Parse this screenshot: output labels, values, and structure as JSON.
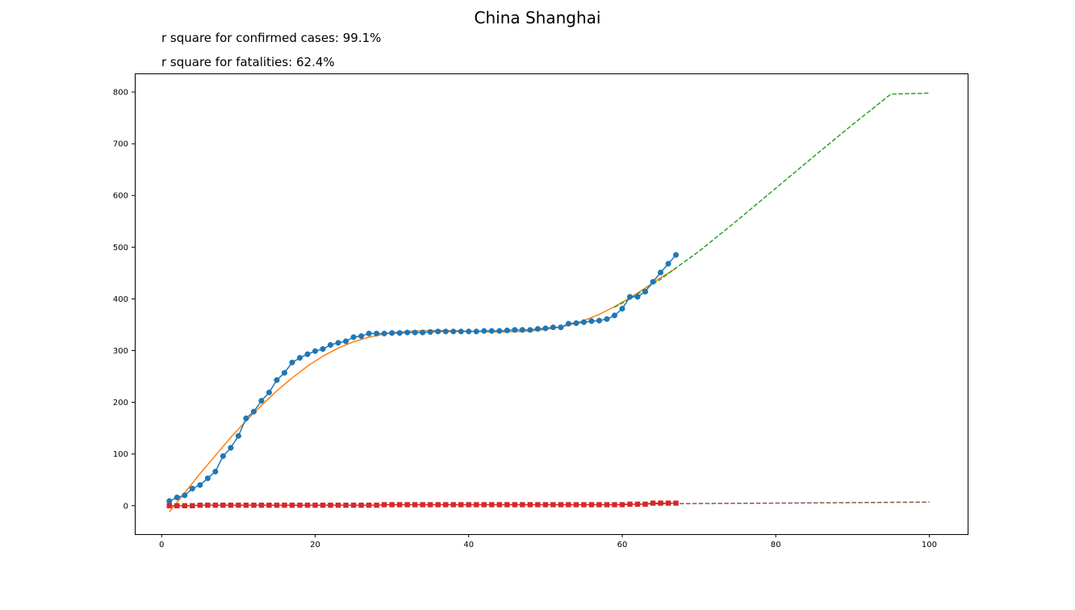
{
  "chart_data": {
    "type": "line",
    "title": "China Shanghai",
    "annotations": [
      "r square for confirmed cases: 99.1%",
      "r square for fatalities: 62.4%"
    ],
    "xlim": [
      -3.5,
      105
    ],
    "ylim": [
      -55,
      836
    ],
    "xticks": [
      0,
      20,
      40,
      60,
      80,
      100
    ],
    "yticks": [
      0,
      100,
      200,
      300,
      400,
      500,
      600,
      700,
      800
    ],
    "grid": false,
    "colors": {
      "confirmed": "#1f77b4",
      "confirmed_fit": "#ff7f0e",
      "confirmed_projection": "#2ca02c",
      "fatalities": "#d62728",
      "fatalities_projection": "#8c564b"
    },
    "series": [
      {
        "role": "confirmed",
        "style": "line-markers-circle",
        "x": [
          1,
          2,
          3,
          4,
          5,
          6,
          7,
          8,
          9,
          10,
          11,
          12,
          13,
          14,
          15,
          16,
          17,
          18,
          19,
          20,
          21,
          22,
          23,
          24,
          25,
          26,
          27,
          28,
          29,
          30,
          31,
          32,
          33,
          34,
          35,
          36,
          37,
          38,
          39,
          40,
          41,
          42,
          43,
          44,
          45,
          46,
          47,
          48,
          49,
          50,
          51,
          52,
          53,
          54,
          55,
          56,
          57,
          58,
          59,
          60,
          61,
          62,
          63,
          64,
          65,
          66,
          67
        ],
        "y": [
          9,
          16,
          20,
          33,
          40,
          53,
          66,
          96,
          112,
          135,
          169,
          182,
          203,
          219,
          243,
          257,
          277,
          286,
          293,
          299,
          303,
          311,
          315,
          318,
          326,
          328,
          333,
          333,
          333,
          334,
          334,
          335,
          335,
          335,
          336,
          337,
          337,
          337,
          337,
          337,
          337,
          338,
          338,
          338,
          339,
          340,
          340,
          340,
          342,
          343,
          345,
          345,
          352,
          353,
          355,
          357,
          358,
          361,
          368,
          381,
          404,
          404,
          414,
          433,
          451,
          468,
          485
        ]
      },
      {
        "role": "confirmed_fit",
        "style": "solid",
        "x": [
          1,
          3,
          5,
          7,
          9,
          11,
          13,
          15,
          17,
          19,
          21,
          23,
          25,
          27,
          29,
          31,
          33,
          35,
          37,
          39,
          41,
          43,
          45,
          47,
          49,
          51,
          53,
          55,
          57,
          59,
          61,
          63,
          65,
          67
        ],
        "y": [
          -12,
          25,
          62,
          97,
          132,
          164,
          194,
          222,
          247,
          270,
          289,
          305,
          317,
          326,
          332,
          336,
          338,
          339,
          339,
          338,
          337,
          336,
          336,
          337,
          339,
          343,
          349,
          358,
          370,
          385,
          402,
          421,
          441,
          459
        ]
      },
      {
        "role": "confirmed_projection",
        "style": "dashed",
        "x": [
          59,
          61,
          63,
          65,
          67,
          70,
          75,
          80,
          85,
          90,
          95,
          100
        ],
        "y": [
          384,
          400,
          419,
          438,
          460,
          492,
          552,
          614,
          676,
          737,
          796,
          798
        ]
      },
      {
        "role": "fatalities",
        "style": "line-markers-square",
        "x": [
          1,
          2,
          3,
          4,
          5,
          6,
          7,
          8,
          9,
          10,
          11,
          12,
          13,
          14,
          15,
          16,
          17,
          18,
          19,
          20,
          21,
          22,
          23,
          24,
          25,
          26,
          27,
          28,
          29,
          30,
          31,
          32,
          33,
          34,
          35,
          36,
          37,
          38,
          39,
          40,
          41,
          42,
          43,
          44,
          45,
          46,
          47,
          48,
          49,
          50,
          51,
          52,
          53,
          54,
          55,
          56,
          57,
          58,
          59,
          60,
          61,
          62,
          63,
          64,
          65,
          66,
          67
        ],
        "y": [
          0,
          0,
          0,
          0,
          1,
          1,
          1,
          1,
          1,
          1,
          1,
          1,
          1,
          1,
          1,
          1,
          1,
          1,
          1,
          1,
          1,
          1,
          1,
          1,
          1,
          1,
          1,
          1,
          2,
          2,
          2,
          2,
          2,
          2,
          2,
          2,
          2,
          2,
          2,
          2,
          2,
          2,
          2,
          2,
          2,
          2,
          2,
          2,
          2,
          2,
          2,
          2,
          2,
          2,
          2,
          2,
          2,
          2,
          2,
          2,
          3,
          3,
          3,
          5,
          5,
          5,
          5
        ]
      },
      {
        "role": "fatalities_projection",
        "style": "dashed",
        "x": [
          60,
          67,
          80,
          100
        ],
        "y": [
          3,
          4,
          5,
          7
        ]
      }
    ]
  }
}
